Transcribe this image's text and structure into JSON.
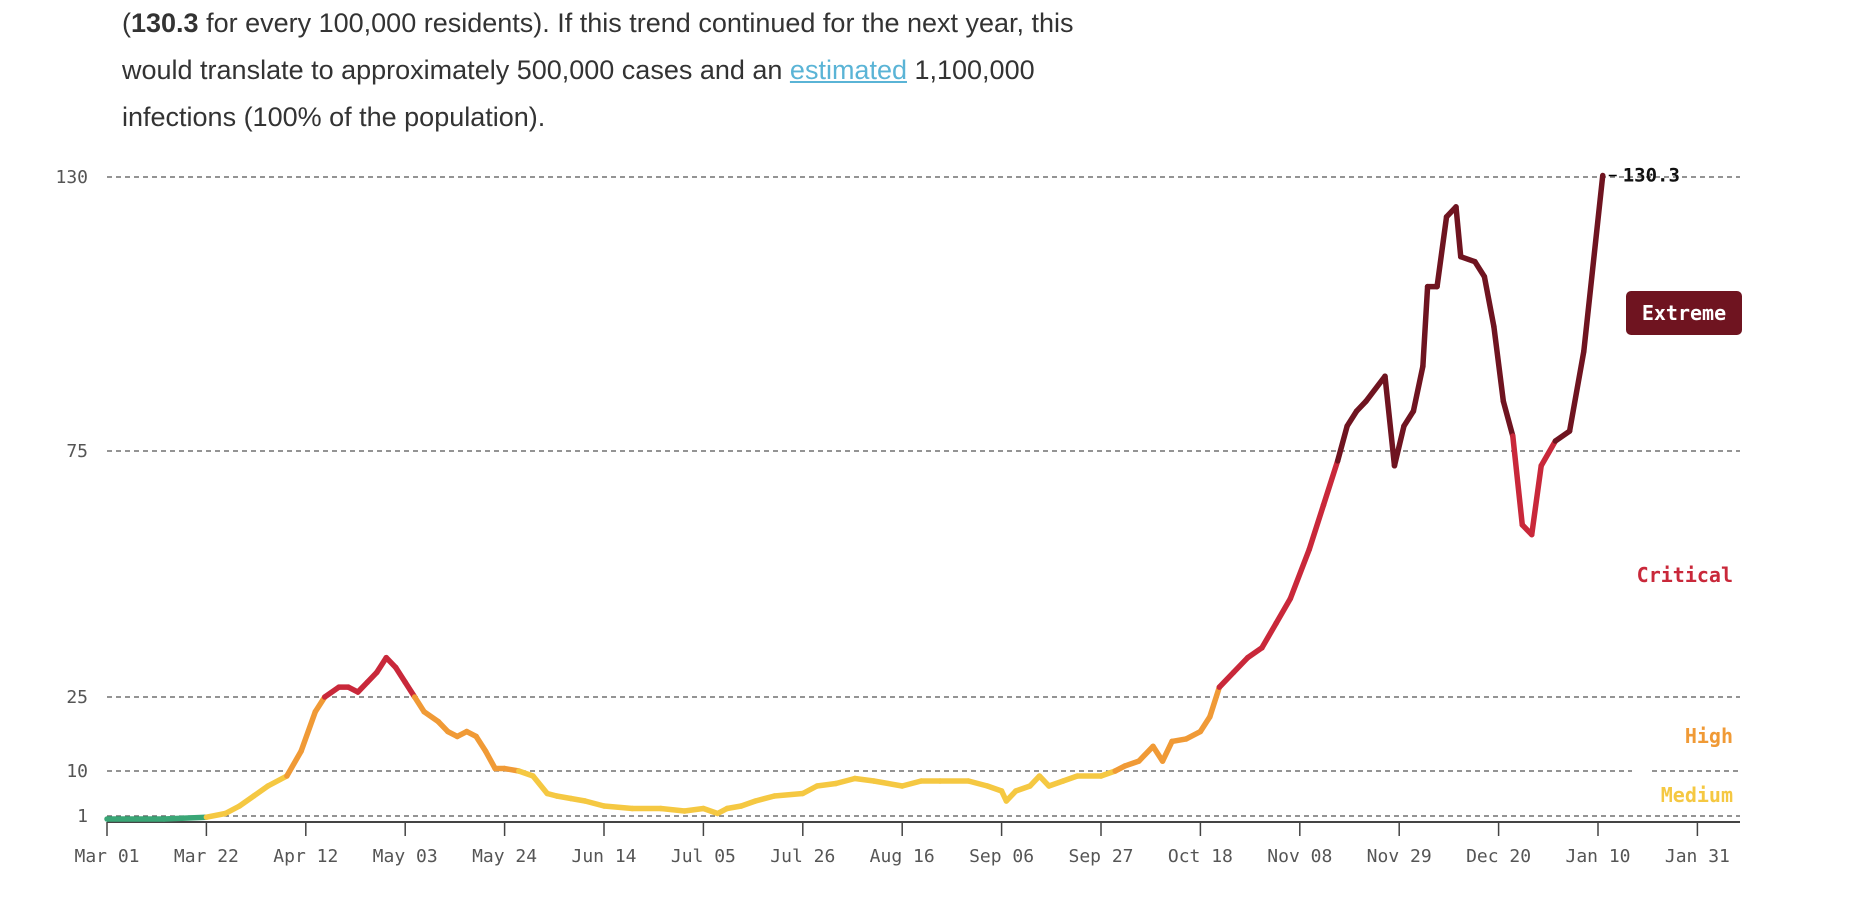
{
  "intro": {
    "open_paren": "(",
    "rate_bold": "130.3",
    "line1_rest": " for every 100,000 residents). If this trend continued for the next year, this",
    "line2_start": "would translate to approximately 500,000 cases and an ",
    "link_text": "estimated",
    "line2_end": " 1,100,000",
    "line3": "infections (100% of the population)."
  },
  "chart_data": {
    "type": "line",
    "title": "",
    "xlabel": "",
    "ylabel": "",
    "x_ticks": [
      "Mar 01",
      "Mar 22",
      "Apr 12",
      "May 03",
      "May 24",
      "Jun 14",
      "Jul 05",
      "Jul 26",
      "Aug 16",
      "Sep 06",
      "Sep 27",
      "Oct 18",
      "Nov 08",
      "Nov 29",
      "Dec 20",
      "Jan 10",
      "Jan 31"
    ],
    "y_ticks": [
      1,
      10,
      25,
      75,
      130
    ],
    "ylim": [
      0,
      130
    ],
    "grid": "dashed horizontal at threshold values",
    "end_label": "130.3",
    "risk_levels": [
      {
        "name": "Medium",
        "min": 1,
        "max": 10,
        "color": "#f5c842"
      },
      {
        "name": "High",
        "min": 10,
        "max": 25,
        "color": "#f09a36"
      },
      {
        "name": "Critical",
        "min": 25,
        "max": 75,
        "color": "#c9283a"
      },
      {
        "name": "Extreme",
        "min": 75,
        "max": 1000,
        "color": "#6f1420"
      }
    ],
    "low_color": "#3aa676",
    "series": [
      {
        "values": [
          [
            "Mar 01",
            0.5
          ],
          [
            "Mar 13",
            0.5
          ],
          [
            "Mar 22",
            0.8
          ],
          [
            "Mar 26",
            1.5
          ],
          [
            "Mar 29",
            3
          ],
          [
            "Apr 01",
            5
          ],
          [
            "Apr 04",
            7
          ],
          [
            "Apr 08",
            9
          ],
          [
            "Apr 11",
            14
          ],
          [
            "Apr 14",
            22
          ],
          [
            "Apr 16",
            25
          ],
          [
            "Apr 19",
            27
          ],
          [
            "Apr 21",
            27
          ],
          [
            "Apr 23",
            26
          ],
          [
            "Apr 25",
            28
          ],
          [
            "Apr 27",
            30
          ],
          [
            "Apr 29",
            33
          ],
          [
            "May 01",
            31
          ],
          [
            "May 03",
            28
          ],
          [
            "May 05",
            25
          ],
          [
            "May 07",
            22
          ],
          [
            "May 10",
            20
          ],
          [
            "May 12",
            18
          ],
          [
            "May 14",
            17
          ],
          [
            "May 16",
            18
          ],
          [
            "May 18",
            17
          ],
          [
            "May 20",
            14
          ],
          [
            "May 22",
            10.5
          ],
          [
            "May 24",
            10.5
          ],
          [
            "May 27",
            10
          ],
          [
            "May 30",
            9
          ],
          [
            "Jun 02",
            5.5
          ],
          [
            "Jun 04",
            5
          ],
          [
            "Jun 07",
            4.5
          ],
          [
            "Jun 10",
            4
          ],
          [
            "Jun 14",
            3
          ],
          [
            "Jun 20",
            2.5
          ],
          [
            "Jun 26",
            2.5
          ],
          [
            "Jul 01",
            2
          ],
          [
            "Jul 05",
            2.5
          ],
          [
            "Jul 08",
            1.5
          ],
          [
            "Jul 10",
            2.5
          ],
          [
            "Jul 13",
            3
          ],
          [
            "Jul 16",
            4
          ],
          [
            "Jul 20",
            5
          ],
          [
            "Jul 26",
            5.5
          ],
          [
            "Jul 29",
            7
          ],
          [
            "Aug 02",
            7.5
          ],
          [
            "Aug 06",
            8.5
          ],
          [
            "Aug 10",
            8
          ],
          [
            "Aug 16",
            7
          ],
          [
            "Aug 20",
            8
          ],
          [
            "Aug 24",
            8
          ],
          [
            "Aug 30",
            8
          ],
          [
            "Sep 03",
            7
          ],
          [
            "Sep 06",
            6
          ],
          [
            "Sep 07",
            4
          ],
          [
            "Sep 09",
            6
          ],
          [
            "Sep 12",
            7
          ],
          [
            "Sep 14",
            9
          ],
          [
            "Sep 16",
            7
          ],
          [
            "Sep 19",
            8
          ],
          [
            "Sep 22",
            9
          ],
          [
            "Sep 27",
            9
          ],
          [
            "Sep 30",
            10
          ],
          [
            "Oct 02",
            11
          ],
          [
            "Oct 05",
            12
          ],
          [
            "Oct 08",
            15
          ],
          [
            "Oct 10",
            12
          ],
          [
            "Oct 12",
            16
          ],
          [
            "Oct 15",
            16.5
          ],
          [
            "Oct 18",
            18
          ],
          [
            "Oct 20",
            21
          ],
          [
            "Oct 22",
            27
          ],
          [
            "Oct 25",
            30
          ],
          [
            "Oct 28",
            33
          ],
          [
            "Oct 31",
            35
          ],
          [
            "Nov 03",
            40
          ],
          [
            "Nov 06",
            45
          ],
          [
            "Nov 10",
            55
          ],
          [
            "Nov 13",
            64
          ],
          [
            "Nov 16",
            73
          ],
          [
            "Nov 18",
            80
          ],
          [
            "Nov 20",
            83
          ],
          [
            "Nov 22",
            85
          ],
          [
            "Nov 26",
            90
          ],
          [
            "Nov 28",
            72
          ],
          [
            "Nov 30",
            80
          ],
          [
            "Dec 02",
            83
          ],
          [
            "Dec 04",
            92
          ],
          [
            "Dec 05",
            108
          ],
          [
            "Dec 07",
            108
          ],
          [
            "Dec 09",
            122
          ],
          [
            "Dec 11",
            124
          ],
          [
            "Dec 12",
            114
          ],
          [
            "Dec 15",
            113
          ],
          [
            "Dec 17",
            110
          ],
          [
            "Dec 19",
            100
          ],
          [
            "Dec 21",
            85
          ],
          [
            "Dec 23",
            78
          ],
          [
            "Dec 25",
            60
          ],
          [
            "Dec 27",
            58
          ],
          [
            "Dec 29",
            72
          ],
          [
            "Jan 01",
            77
          ],
          [
            "Jan 04",
            79
          ],
          [
            "Jan 07",
            95
          ],
          [
            "Jan 11",
            130.3
          ]
        ]
      }
    ]
  }
}
